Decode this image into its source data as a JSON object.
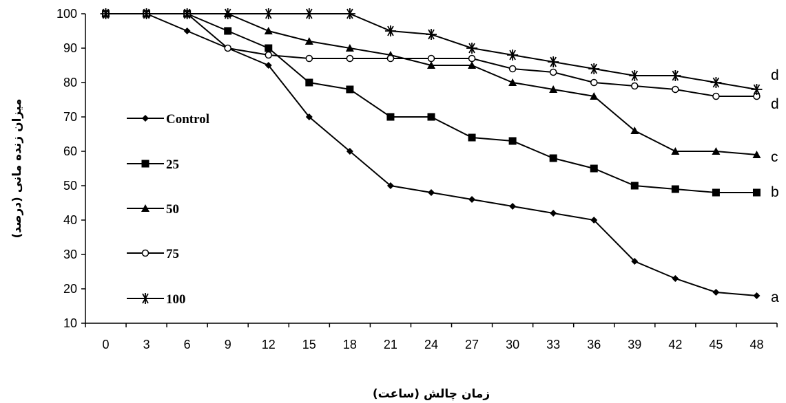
{
  "chart_data": {
    "type": "line",
    "title": "",
    "xlabel": "زمان چالش (ساعت)",
    "ylabel": "میزان زنده مانی (درصد)",
    "x": [
      0,
      3,
      6,
      9,
      12,
      15,
      18,
      21,
      24,
      27,
      30,
      33,
      36,
      39,
      42,
      45,
      48
    ],
    "ylim": [
      10,
      100
    ],
    "yticks": [
      10,
      20,
      30,
      40,
      50,
      60,
      70,
      80,
      90,
      100
    ],
    "grid": false,
    "legend_position": "left",
    "series": [
      {
        "name": "Control",
        "marker": "diamond",
        "end_label": "a",
        "values": [
          100,
          100,
          95,
          90,
          85,
          70,
          60,
          50,
          48,
          46,
          44,
          42,
          40,
          28,
          23,
          19,
          18
        ]
      },
      {
        "name": "25",
        "marker": "square",
        "end_label": "b",
        "values": [
          100,
          100,
          100,
          95,
          90,
          80,
          78,
          70,
          70,
          64,
          63,
          58,
          55,
          50,
          49,
          48,
          48
        ]
      },
      {
        "name": "50",
        "marker": "triangle",
        "end_label": "c",
        "values": [
          100,
          100,
          100,
          100,
          95,
          92,
          90,
          88,
          85,
          85,
          80,
          78,
          76,
          66,
          60,
          60,
          59
        ]
      },
      {
        "name": "75",
        "marker": "circle",
        "end_label": "d",
        "values": [
          100,
          100,
          100,
          90,
          88,
          87,
          87,
          87,
          87,
          87,
          84,
          83,
          80,
          79,
          78,
          76,
          76
        ]
      },
      {
        "name": "100",
        "marker": "star",
        "end_label": "d",
        "values": [
          100,
          100,
          100,
          100,
          100,
          100,
          100,
          95,
          94,
          90,
          88,
          86,
          84,
          82,
          82,
          80,
          78
        ]
      }
    ]
  }
}
